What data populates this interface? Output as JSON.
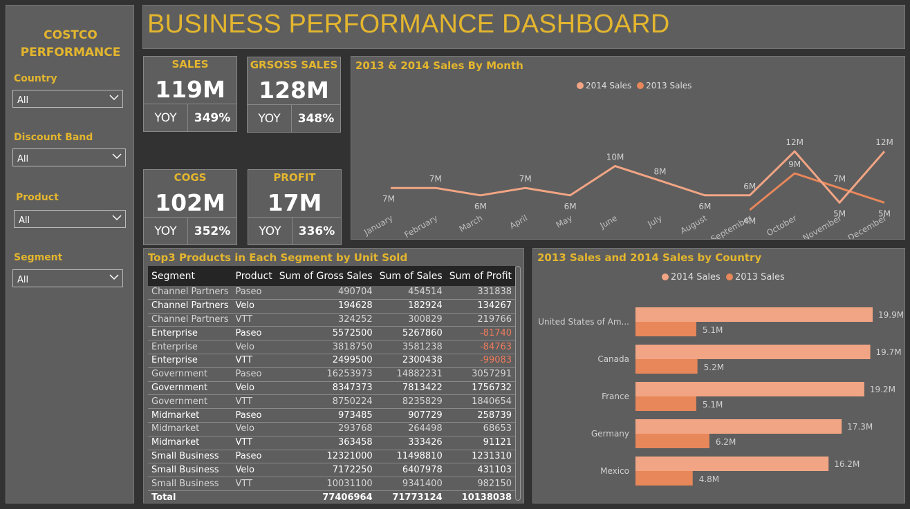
{
  "sidebar": {
    "brand_line1": "COSTCO",
    "brand_line2": "PERFORMANCE",
    "filters": [
      {
        "label": "Country",
        "value": "All"
      },
      {
        "label": "Discount Band",
        "value": "All"
      },
      {
        "label": "Product",
        "value": "All"
      },
      {
        "label": "Segment",
        "value": "All"
      }
    ]
  },
  "header": {
    "title": "BUSINESS PERFORMANCE DASHBOARD"
  },
  "kpis": [
    {
      "title": "SALES",
      "value": "119M",
      "yoy_label": "YOY",
      "yoy_value": "349%"
    },
    {
      "title": "GRSOSS SALES",
      "value": "128M",
      "yoy_label": "YOY",
      "yoy_value": "348%"
    },
    {
      "title": "COGS",
      "value": "102M",
      "yoy_label": "YOY",
      "yoy_value": "352%"
    },
    {
      "title": "PROFIT",
      "value": "17M",
      "yoy_label": "YOY",
      "yoy_value": "336%"
    }
  ],
  "colors": {
    "accent": "#e4b62e",
    "series_2014": "#f2a584",
    "series_2013": "#e8875a",
    "negative": "#f07b5c",
    "panel": "#5e5e5e",
    "background": "#323232"
  },
  "line_chart": {
    "title": "2013 & 2014 Sales By Month",
    "legend": [
      "2014 Sales",
      "2013 Sales"
    ]
  },
  "table": {
    "title": "Top3 Products in Each Segment by Unit Sold",
    "columns": [
      "Segment",
      "Product",
      "Sum of Gross Sales",
      "Sum of Sales",
      "Sum of Profit"
    ],
    "rows": [
      [
        "Channel Partners",
        "Paseo",
        "490704",
        "454514",
        "331838"
      ],
      [
        "Channel Partners",
        "Velo",
        "194628",
        "182924",
        "134267"
      ],
      [
        "Channel Partners",
        "VTT",
        "324252",
        "300829",
        "219766"
      ],
      [
        "Enterprise",
        "Paseo",
        "5572500",
        "5267860",
        "-81740"
      ],
      [
        "Enterprise",
        "Velo",
        "3818750",
        "3581238",
        "-84763"
      ],
      [
        "Enterprise",
        "VTT",
        "2499500",
        "2300438",
        "-99083"
      ],
      [
        "Government",
        "Paseo",
        "16253973",
        "14882231",
        "3057291"
      ],
      [
        "Government",
        "Velo",
        "8347373",
        "7813422",
        "1756732"
      ],
      [
        "Government",
        "VTT",
        "8750224",
        "8235829",
        "1840654"
      ],
      [
        "Midmarket",
        "Paseo",
        "973485",
        "907729",
        "258739"
      ],
      [
        "Midmarket",
        "Velo",
        "293768",
        "264498",
        "68653"
      ],
      [
        "Midmarket",
        "VTT",
        "363458",
        "333426",
        "91121"
      ],
      [
        "Small Business",
        "Paseo",
        "12321000",
        "11498810",
        "1231310"
      ],
      [
        "Small Business",
        "Velo",
        "7172250",
        "6407978",
        "431103"
      ],
      [
        "Small Business",
        "VTT",
        "10031100",
        "9341400",
        "982150"
      ]
    ],
    "total": [
      "Total",
      "",
      "77406964",
      "71773124",
      "10138038"
    ]
  },
  "bar_chart": {
    "title": "2013 Sales and 2014 Sales by Country",
    "legend": [
      "2014 Sales",
      "2013 Sales"
    ]
  },
  "chart_data": [
    {
      "type": "line",
      "title": "2013 & 2014 Sales By Month",
      "x": [
        "January",
        "February",
        "March",
        "April",
        "May",
        "June",
        "July",
        "August",
        "September",
        "October",
        "November",
        "December"
      ],
      "series": [
        {
          "name": "2014 Sales",
          "values": [
            7,
            7,
            6,
            7,
            6,
            10,
            8,
            6,
            6,
            12,
            5,
            12
          ],
          "labels": [
            "7M",
            "7M",
            "6M",
            "7M",
            "6M",
            "10M",
            "8M",
            "6M",
            "6M",
            "12M",
            "5M",
            "12M"
          ]
        },
        {
          "name": "2013 Sales",
          "values": [
            null,
            null,
            null,
            null,
            null,
            null,
            null,
            null,
            4,
            9,
            7,
            5
          ],
          "labels": [
            null,
            null,
            null,
            null,
            null,
            null,
            null,
            null,
            "4M",
            "9M",
            "7M",
            "5M"
          ]
        }
      ],
      "legend": "top-center",
      "grid": false
    },
    {
      "type": "bar",
      "orientation": "horizontal",
      "title": "2013 Sales and 2014 Sales by Country",
      "categories": [
        "United States of Am...",
        "Canada",
        "France",
        "Germany",
        "Mexico"
      ],
      "series": [
        {
          "name": "2014 Sales",
          "values": [
            19.9,
            19.7,
            19.2,
            17.3,
            16.2
          ],
          "labels": [
            "19.9M",
            "19.7M",
            "19.2M",
            "17.3M",
            "16.2M"
          ]
        },
        {
          "name": "2013 Sales",
          "values": [
            5.1,
            5.2,
            5.1,
            6.2,
            4.8
          ],
          "labels": [
            "5.1M",
            "5.2M",
            "5.1M",
            "6.2M",
            "4.8M"
          ]
        }
      ],
      "legend": "top-center",
      "grid": false
    }
  ]
}
